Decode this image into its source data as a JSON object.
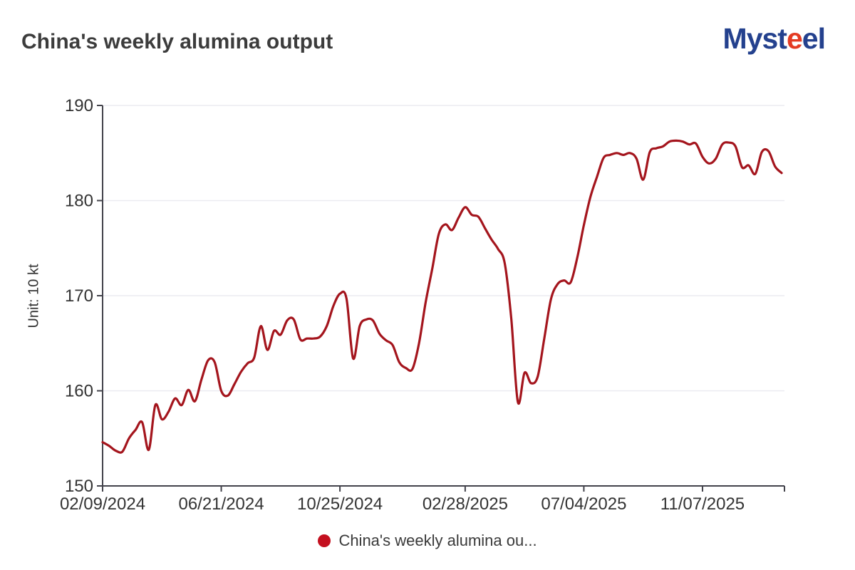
{
  "header": {
    "title": "China's weekly alumina output",
    "logo": {
      "part1": "Myst",
      "e_red": "e",
      "e_blue": "e",
      "part2": "l"
    }
  },
  "chart_data": {
    "type": "line",
    "title": "China's weekly alumina output",
    "unit_label": "Unit: 10 kt",
    "xlabel": "",
    "ylabel": "Unit: 10 kt",
    "ylim": [
      150,
      190
    ],
    "grid": true,
    "y_ticks": [
      "150",
      "160",
      "170",
      "180",
      "190"
    ],
    "x_tick_labels": [
      "02/09/2024",
      "06/21/2024",
      "10/25/2024",
      "02/28/2025",
      "07/04/2025",
      "11/07/2025"
    ],
    "x_tick_indices": [
      0,
      18,
      36,
      55,
      73,
      91
    ],
    "legend": {
      "label": "China's weekly alumina ou...",
      "marker_color": "#c4101f",
      "position": "bottom"
    },
    "series": [
      {
        "name": "China's weekly alumina output",
        "color": "#a4151d",
        "values": [
          154.6,
          154.2,
          153.7,
          153.6,
          155.0,
          155.9,
          156.7,
          153.8,
          158.5,
          157.0,
          157.8,
          159.2,
          158.5,
          160.1,
          158.9,
          161.2,
          163.2,
          163.0,
          160.0,
          159.5,
          160.7,
          162.0,
          162.9,
          163.5,
          166.8,
          164.3,
          166.3,
          165.9,
          167.4,
          167.5,
          165.4,
          165.5,
          165.5,
          165.7,
          166.8,
          168.9,
          170.2,
          169.7,
          163.4,
          166.8,
          167.5,
          167.4,
          166.0,
          165.3,
          164.8,
          163.0,
          162.4,
          162.3,
          165.0,
          169.3,
          172.8,
          176.5,
          177.5,
          176.9,
          178.2,
          179.3,
          178.5,
          178.3,
          177.1,
          175.9,
          174.9,
          173.4,
          167.5,
          158.8,
          161.9,
          160.8,
          161.5,
          165.5,
          169.6,
          171.2,
          171.6,
          171.4,
          174.0,
          177.4,
          180.4,
          182.5,
          184.5,
          184.8,
          185.0,
          184.8,
          185.0,
          184.4,
          182.2,
          185.1,
          185.5,
          185.7,
          186.2,
          186.3,
          186.2,
          185.9,
          186.0,
          184.6,
          183.9,
          184.4,
          185.9,
          186.1,
          185.7,
          183.5,
          183.7,
          182.8,
          185.1,
          185.2,
          183.6,
          182.9
        ]
      }
    ],
    "style": {
      "axis_color": "#43434b",
      "grid_color": "#ebebf1",
      "tick_label_color": "#333333",
      "line_width": 3.2
    }
  }
}
